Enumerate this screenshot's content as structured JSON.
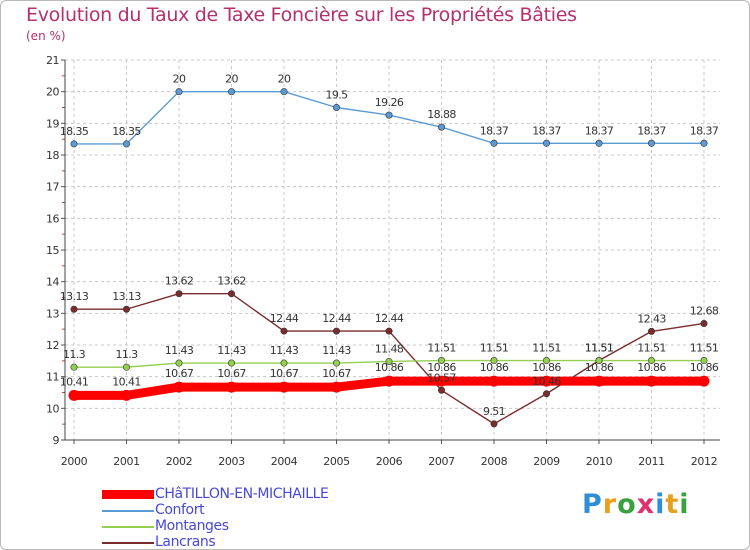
{
  "chart_data": {
    "type": "line",
    "title": "Evolution du Taux de Taxe Foncière sur les Propriétés Bâties",
    "ylabel": "(en %)",
    "xlabel": "",
    "ylim": [
      9,
      21
    ],
    "yticks": [
      "9",
      "10",
      "11",
      "12",
      "13",
      "14",
      "15",
      "16",
      "17",
      "18",
      "19",
      "20",
      "21"
    ],
    "categories": [
      "2000",
      "2001",
      "2002",
      "2003",
      "2004",
      "2005",
      "2006",
      "2007",
      "2008",
      "2009",
      "2010",
      "2011",
      "2012"
    ],
    "legend_position": "bottom-left",
    "series": [
      {
        "name": "CHâTILLON-EN-MICHAILLE",
        "color": "#ff0000",
        "values": [
          10.41,
          10.41,
          10.67,
          10.67,
          10.67,
          10.67,
          10.86,
          10.86,
          10.86,
          10.86,
          10.86,
          10.86,
          10.86
        ],
        "labels": [
          "10.41",
          "10.41",
          "10.67",
          "10.67",
          "10.67",
          "10.67",
          "10.86",
          "10.86",
          "10.86",
          "10.86",
          "10.86",
          "10.86",
          "10.86"
        ]
      },
      {
        "name": "Confort",
        "color": "#5b9bd5",
        "values": [
          18.35,
          18.35,
          20,
          20,
          20,
          19.5,
          19.26,
          18.88,
          18.37,
          18.37,
          18.37,
          18.37,
          18.37
        ],
        "labels": [
          "18.35",
          "18.35",
          "20",
          "20",
          "20",
          "19.5",
          "19.26",
          "18.88",
          "18.37",
          "18.37",
          "18.37",
          "18.37",
          "18.37"
        ]
      },
      {
        "name": "Montanges",
        "color": "#92d050",
        "values": [
          11.3,
          11.3,
          11.43,
          11.43,
          11.43,
          11.43,
          11.48,
          11.51,
          11.51,
          11.51,
          11.51,
          11.51,
          11.51
        ],
        "labels": [
          "11.3",
          "11.3",
          "11.43",
          "11.43",
          "11.43",
          "11.43",
          "11.48",
          "11.51",
          "11.51",
          "11.51",
          "11.51",
          "11.51",
          "11.51"
        ]
      },
      {
        "name": "Lancrans",
        "color": "#7b2c2c",
        "values": [
          13.13,
          13.13,
          13.62,
          13.62,
          12.44,
          12.44,
          12.44,
          10.57,
          9.51,
          10.46,
          11.51,
          12.43,
          12.68
        ],
        "labels": [
          "13.13",
          "13.13",
          "13.62",
          "13.62",
          "12.44",
          "12.44",
          "12.44",
          "10.57",
          "9.51",
          "10.46",
          "11.51",
          "12.43",
          "12.68"
        ]
      }
    ]
  },
  "logo": {
    "letters": [
      "P",
      "r",
      "o",
      "x",
      "i",
      "t",
      "i"
    ],
    "colors": [
      "#2e8fd8",
      "#e8a020",
      "#3aa040",
      "#e03070",
      "#2e8fd8",
      "#e8a020",
      "#3aa040"
    ]
  }
}
